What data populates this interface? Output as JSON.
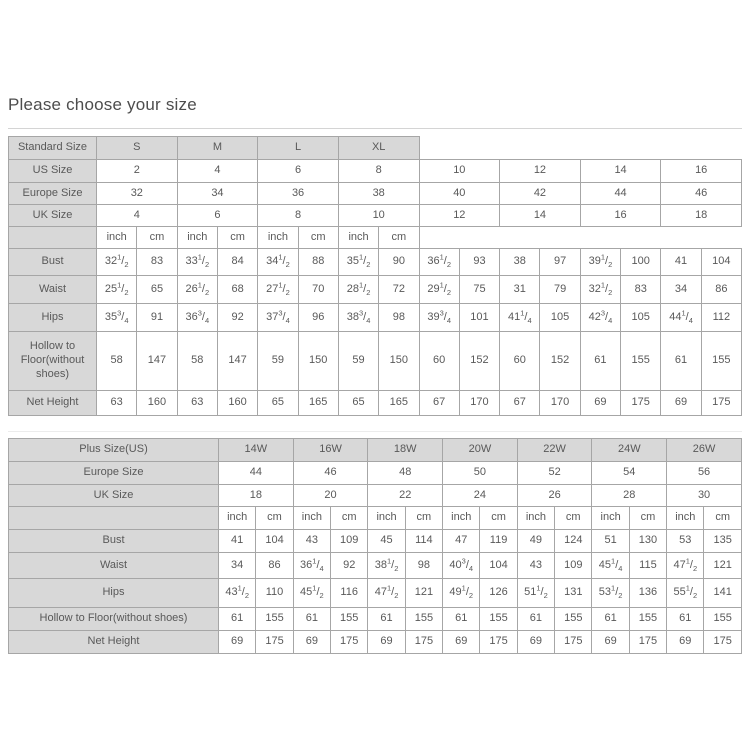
{
  "page": {
    "title": "Please choose your size"
  },
  "units": [
    "inch",
    "cm"
  ],
  "colors": {
    "header_bg": "#d8d8d8",
    "table_border": "#a6a6a6",
    "text": "#595959"
  },
  "tables": [
    {
      "name": "standard",
      "header_label": "Standard Size",
      "groups": [
        "S",
        "M",
        "L",
        "XL"
      ],
      "size_rows": [
        {
          "label": "US Size",
          "values": [
            "2",
            "4",
            "6",
            "8",
            "10",
            "12",
            "14",
            "16"
          ]
        },
        {
          "label": "Europe Size",
          "values": [
            "32",
            "34",
            "36",
            "38",
            "40",
            "42",
            "44",
            "46"
          ]
        },
        {
          "label": "UK Size",
          "values": [
            "4",
            "6",
            "8",
            "10",
            "12",
            "14",
            "16",
            "18"
          ]
        }
      ],
      "measure_rows": [
        {
          "label": "Bust",
          "values": [
            "32 1/2",
            "83",
            "33 1/2",
            "84",
            "34 1/2",
            "88",
            "35 1/2",
            "90",
            "36 1/2",
            "93",
            "38",
            "97",
            "39 1/2",
            "100",
            "41",
            "104"
          ]
        },
        {
          "label": "Waist",
          "values": [
            "25 1/2",
            "65",
            "26 1/2",
            "68",
            "27 1/2",
            "70",
            "28 1/2",
            "72",
            "29 1/2",
            "75",
            "31",
            "79",
            "32 1/2",
            "83",
            "34",
            "86"
          ]
        },
        {
          "label": "Hips",
          "values": [
            "35 3/4",
            "91",
            "36 3/4",
            "92",
            "37 3/4",
            "96",
            "38 3/4",
            "98",
            "39 3/4",
            "101",
            "41 1/4",
            "105",
            "42 3/4",
            "105",
            "44 1/4",
            "112"
          ]
        },
        {
          "label": "Hollow to Floor(without shoes)",
          "values": [
            "58",
            "147",
            "58",
            "147",
            "59",
            "150",
            "59",
            "150",
            "60",
            "152",
            "60",
            "152",
            "61",
            "155",
            "61",
            "155"
          ]
        },
        {
          "label": "Net Height",
          "values": [
            "63",
            "160",
            "63",
            "160",
            "65",
            "165",
            "65",
            "165",
            "67",
            "170",
            "67",
            "170",
            "69",
            "175",
            "69",
            "175"
          ]
        }
      ]
    },
    {
      "name": "plus",
      "header_label": "Plus Size(US)",
      "groups": [
        "14W",
        "16W",
        "18W",
        "20W",
        "22W",
        "24W",
        "26W"
      ],
      "size_rows": [
        {
          "label": "Europe Size",
          "values": [
            "44",
            "46",
            "48",
            "50",
            "52",
            "54",
            "56"
          ]
        },
        {
          "label": "UK Size",
          "values": [
            "18",
            "20",
            "22",
            "24",
            "26",
            "28",
            "30"
          ]
        }
      ],
      "measure_rows": [
        {
          "label": "Bust",
          "values": [
            "41",
            "104",
            "43",
            "109",
            "45",
            "114",
            "47",
            "119",
            "49",
            "124",
            "51",
            "130",
            "53",
            "135"
          ]
        },
        {
          "label": "Waist",
          "values": [
            "34",
            "86",
            "36 1/4",
            "92",
            "38 1/2",
            "98",
            "40 3/4",
            "104",
            "43",
            "109",
            "45 1/4",
            "115",
            "47 1/2",
            "121"
          ]
        },
        {
          "label": "Hips",
          "values": [
            "43 1/2",
            "110",
            "45 1/2",
            "116",
            "47 1/2",
            "121",
            "49 1/2",
            "126",
            "51 1/2",
            "131",
            "53 1/2",
            "136",
            "55 1/2",
            "141"
          ]
        },
        {
          "label": "Hollow to Floor(without shoes)",
          "values": [
            "61",
            "155",
            "61",
            "155",
            "61",
            "155",
            "61",
            "155",
            "61",
            "155",
            "61",
            "155",
            "61",
            "155"
          ]
        },
        {
          "label": "Net Height",
          "values": [
            "69",
            "175",
            "69",
            "175",
            "69",
            "175",
            "69",
            "175",
            "69",
            "175",
            "69",
            "175",
            "69",
            "175"
          ]
        }
      ]
    }
  ]
}
